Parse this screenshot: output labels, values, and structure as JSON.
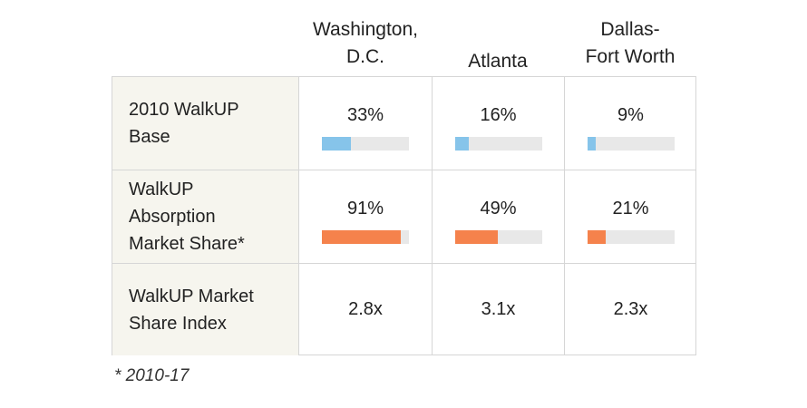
{
  "chart_data": {
    "type": "table",
    "columns": [
      "Washington,\nD.C.",
      "Atlanta",
      "Dallas-\nFort Worth"
    ],
    "rows": [
      {
        "label": "2010 WalkUP\nBase",
        "values": [
          "33%",
          "16%",
          "9%"
        ],
        "fractions": [
          0.33,
          0.16,
          0.09
        ],
        "bar_color": "#86c4ea"
      },
      {
        "label": "WalkUP\nAbsorption\nMarket Share*",
        "values": [
          "91%",
          "49%",
          "21%"
        ],
        "fractions": [
          0.91,
          0.49,
          0.21
        ],
        "bar_color": "#f5824c"
      },
      {
        "label": "WalkUP Market\nShare Index",
        "values": [
          "2.8x",
          "3.1x",
          "2.3x"
        ]
      }
    ],
    "footnote": "* 2010-17",
    "colors": {
      "track": "#e8e8e8",
      "label_bg": "#f6f5ee",
      "border": "#d6d6d6"
    }
  }
}
